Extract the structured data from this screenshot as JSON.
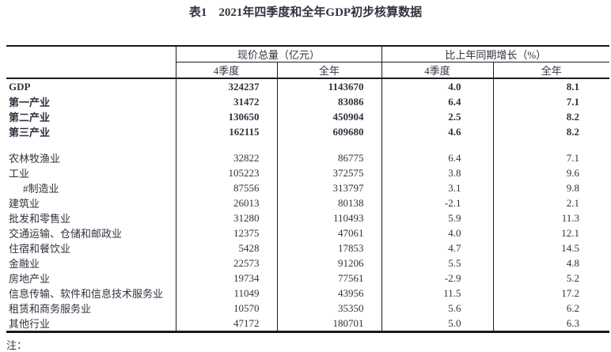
{
  "title": "表1　2021年四季度和全年GDP初步核算数据",
  "table": {
    "col_groups": [
      {
        "label": "现价总量（亿元）",
        "sub": [
          "4季度",
          "全年"
        ]
      },
      {
        "label": "比上年同期增长（%）",
        "sub": [
          "4季度",
          "全年"
        ]
      }
    ],
    "rows": [
      {
        "label": "GDP",
        "bold": true,
        "indent": false,
        "spacer": false,
        "values": [
          "324237",
          "1143670",
          "4.0",
          "8.1"
        ]
      },
      {
        "label": "第一产业",
        "bold": true,
        "indent": false,
        "spacer": false,
        "values": [
          "31472",
          "83086",
          "6.4",
          "7.1"
        ]
      },
      {
        "label": "第二产业",
        "bold": true,
        "indent": false,
        "spacer": false,
        "values": [
          "130650",
          "450904",
          "2.5",
          "8.2"
        ]
      },
      {
        "label": "第三产业",
        "bold": true,
        "indent": false,
        "spacer": false,
        "values": [
          "162115",
          "609680",
          "4.6",
          "8.2"
        ]
      },
      {
        "label": "",
        "bold": false,
        "indent": false,
        "spacer": true,
        "values": [
          "",
          "",
          "",
          ""
        ]
      },
      {
        "label": "农林牧渔业",
        "bold": false,
        "indent": false,
        "spacer": false,
        "values": [
          "32822",
          "86775",
          "6.4",
          "7.1"
        ]
      },
      {
        "label": "工业",
        "bold": false,
        "indent": false,
        "spacer": false,
        "values": [
          "105223",
          "372575",
          "3.8",
          "9.6"
        ]
      },
      {
        "label": "#制造业",
        "bold": false,
        "indent": true,
        "spacer": false,
        "values": [
          "87556",
          "313797",
          "3.1",
          "9.8"
        ]
      },
      {
        "label": "建筑业",
        "bold": false,
        "indent": false,
        "spacer": false,
        "values": [
          "26013",
          "80138",
          "-2.1",
          "2.1"
        ]
      },
      {
        "label": "批发和零售业",
        "bold": false,
        "indent": false,
        "spacer": false,
        "values": [
          "31280",
          "110493",
          "5.9",
          "11.3"
        ]
      },
      {
        "label": "交通运输、仓储和邮政业",
        "bold": false,
        "indent": false,
        "spacer": false,
        "values": [
          "12375",
          "47061",
          "4.0",
          "12.1"
        ]
      },
      {
        "label": "住宿和餐饮业",
        "bold": false,
        "indent": false,
        "spacer": false,
        "values": [
          "5428",
          "17853",
          "4.7",
          "14.5"
        ]
      },
      {
        "label": "金融业",
        "bold": false,
        "indent": false,
        "spacer": false,
        "values": [
          "22573",
          "91206",
          "5.5",
          "4.8"
        ]
      },
      {
        "label": "房地产业",
        "bold": false,
        "indent": false,
        "spacer": false,
        "values": [
          "19734",
          "77561",
          "-2.9",
          "5.2"
        ]
      },
      {
        "label": "信息传输、软件和信息技术服务业",
        "bold": false,
        "indent": false,
        "spacer": false,
        "values": [
          "11049",
          "43956",
          "11.5",
          "17.2"
        ]
      },
      {
        "label": "租赁和商务服务业",
        "bold": false,
        "indent": false,
        "spacer": false,
        "values": [
          "10570",
          "35350",
          "5.6",
          "6.2"
        ]
      },
      {
        "label": "其他行业",
        "bold": false,
        "indent": false,
        "spacer": false,
        "values": [
          "47172",
          "180701",
          "5.0",
          "6.3"
        ]
      }
    ]
  },
  "note": {
    "text": "注："
  }
}
